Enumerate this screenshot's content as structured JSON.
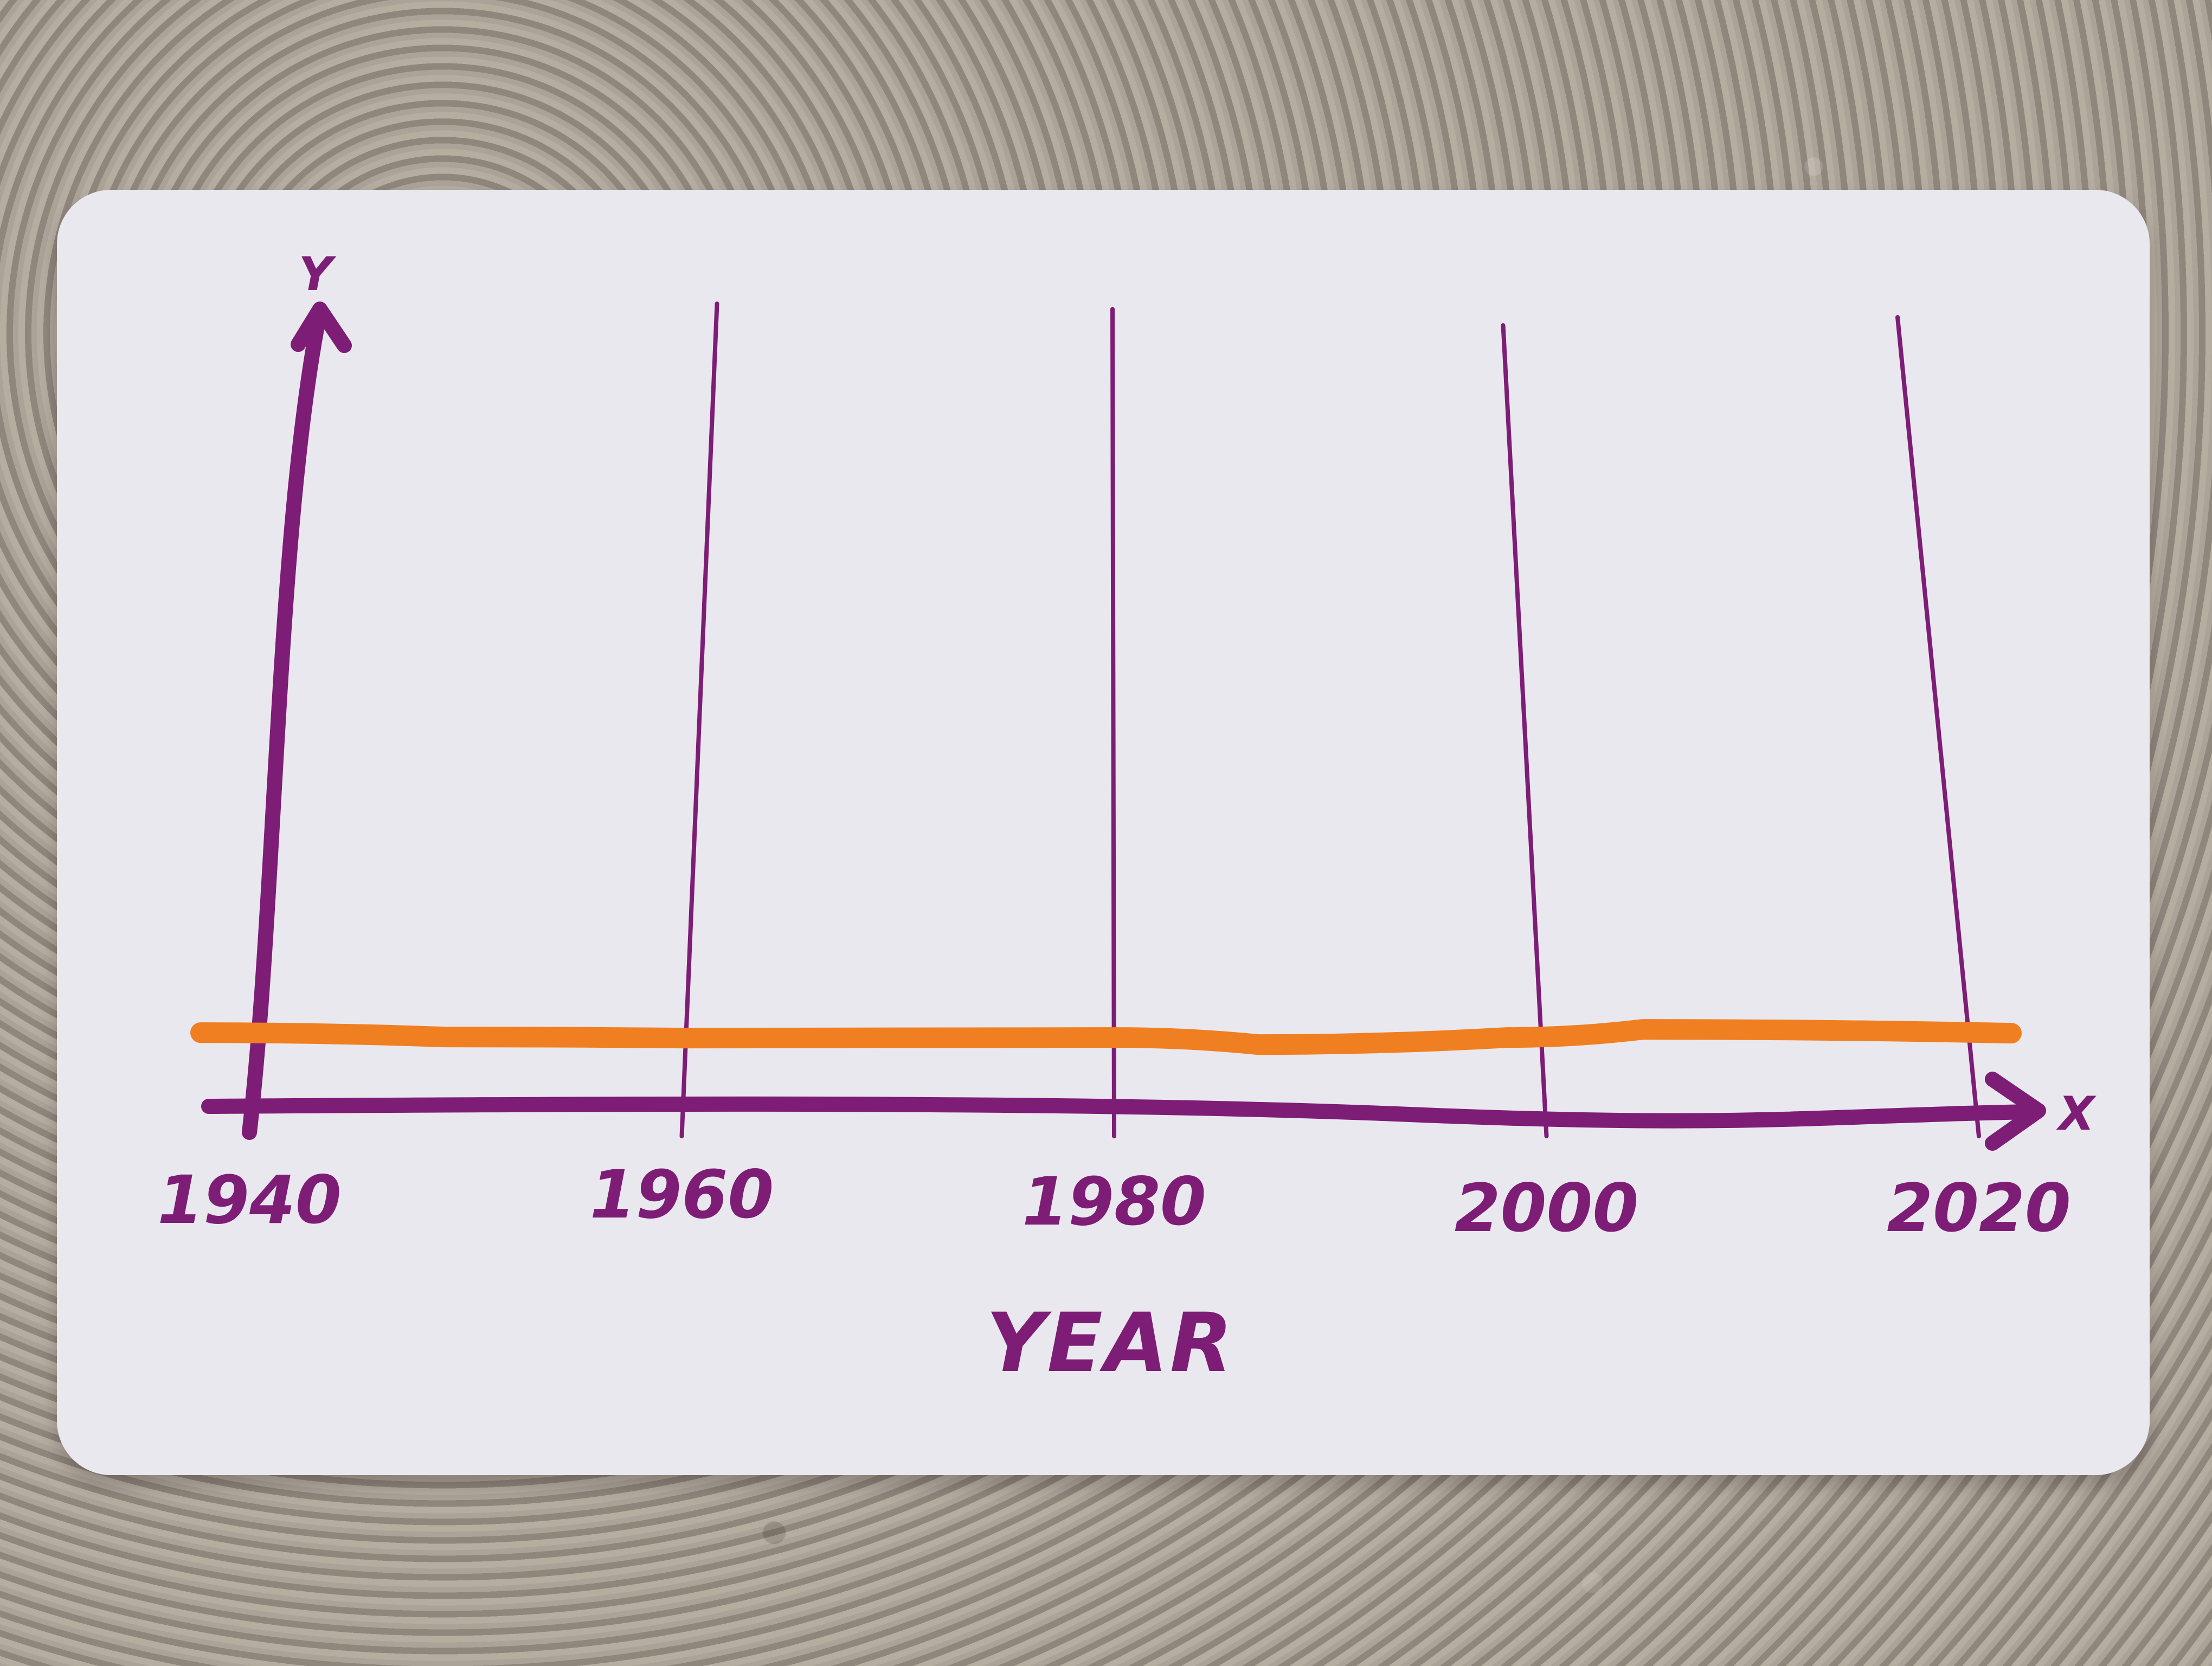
{
  "chart_data": {
    "type": "line",
    "x": [
      1940,
      1960,
      1980,
      2000,
      2020
    ],
    "ylim": [
      0,
      1
    ],
    "xlim": [
      1940,
      2020
    ],
    "grid": true,
    "xlabel": "YEAR",
    "ylabel": "",
    "x_axis_letter": "X",
    "y_axis_letter": "Y",
    "tick_labels": [
      "1940",
      "1960",
      "1980",
      "2000",
      "2020"
    ],
    "series": [
      {
        "values": [
          0.09,
          0.09,
          0.09,
          0.09,
          0.09
        ],
        "color": "#f07f22"
      }
    ]
  },
  "colors": {
    "axis": "#7d1d76",
    "series": "#f07f22",
    "card": "#eae8ef"
  }
}
